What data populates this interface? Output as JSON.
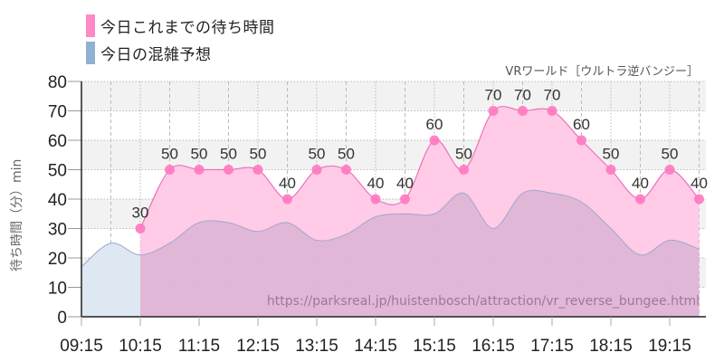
{
  "legend": [
    {
      "label": "今日これまでの待ち時間",
      "color": "#ff88c8"
    },
    {
      "label": "今日の混雑予想",
      "color": "#8fb2d0"
    }
  ],
  "subtitle": "VRワールド［ウルトラ逆バンジー］",
  "y_axis_label": "待ち時間（分）min",
  "watermark_url": "https://parksreal.jp/huistenbosch/attraction/vr_reverse_bungee.html",
  "colors": {
    "actual_fill": "#ffc8e6",
    "actual_line": "#f070b8",
    "actual_marker": "#ff78c0",
    "forecast_fill": "#d8b8d8",
    "forecast_pre_fill": "#dde8f2",
    "forecast_line": "#a0a8cc",
    "band": "#f2f2f2",
    "grid": "#bbbbbb"
  },
  "chart_data": {
    "type": "area",
    "title": "VRワールド［ウルトラ逆バンジー］",
    "xlabel": "",
    "ylabel": "待ち時間（分）min",
    "ylim": [
      0,
      80
    ],
    "yticks": [
      0,
      10,
      20,
      30,
      40,
      50,
      60,
      70,
      80
    ],
    "xticks": [
      "09:15",
      "10:15",
      "11:15",
      "12:15",
      "13:15",
      "14:15",
      "15:15",
      "16:15",
      "17:15",
      "18:15",
      "19:15"
    ],
    "grid": true,
    "legend_position": "top-left",
    "series": [
      {
        "name": "今日これまでの待ち時間",
        "type": "area+markers",
        "x": [
          "10:15",
          "10:45",
          "11:15",
          "11:45",
          "12:15",
          "12:45",
          "13:15",
          "13:45",
          "14:15",
          "14:45",
          "15:15",
          "15:45",
          "16:15",
          "16:45",
          "17:15",
          "17:45",
          "18:15",
          "18:45",
          "19:15",
          "19:45"
        ],
        "values": [
          30,
          50,
          50,
          50,
          50,
          40,
          50,
          50,
          40,
          40,
          60,
          50,
          70,
          70,
          70,
          60,
          50,
          40,
          50,
          40
        ]
      },
      {
        "name": "今日の混雑予想",
        "type": "smooth-area",
        "x": [
          "09:15",
          "09:45",
          "10:15",
          "10:45",
          "11:15",
          "11:45",
          "12:15",
          "12:45",
          "13:15",
          "13:45",
          "14:15",
          "14:45",
          "15:15",
          "15:45",
          "16:15",
          "16:45",
          "17:15",
          "17:45",
          "18:15",
          "18:45",
          "19:15",
          "19:45"
        ],
        "values": [
          17,
          25,
          21,
          25,
          32,
          32,
          29,
          32,
          26,
          28,
          34,
          35,
          35,
          42,
          30,
          42,
          42,
          39,
          30,
          21,
          26,
          23
        ]
      }
    ]
  }
}
